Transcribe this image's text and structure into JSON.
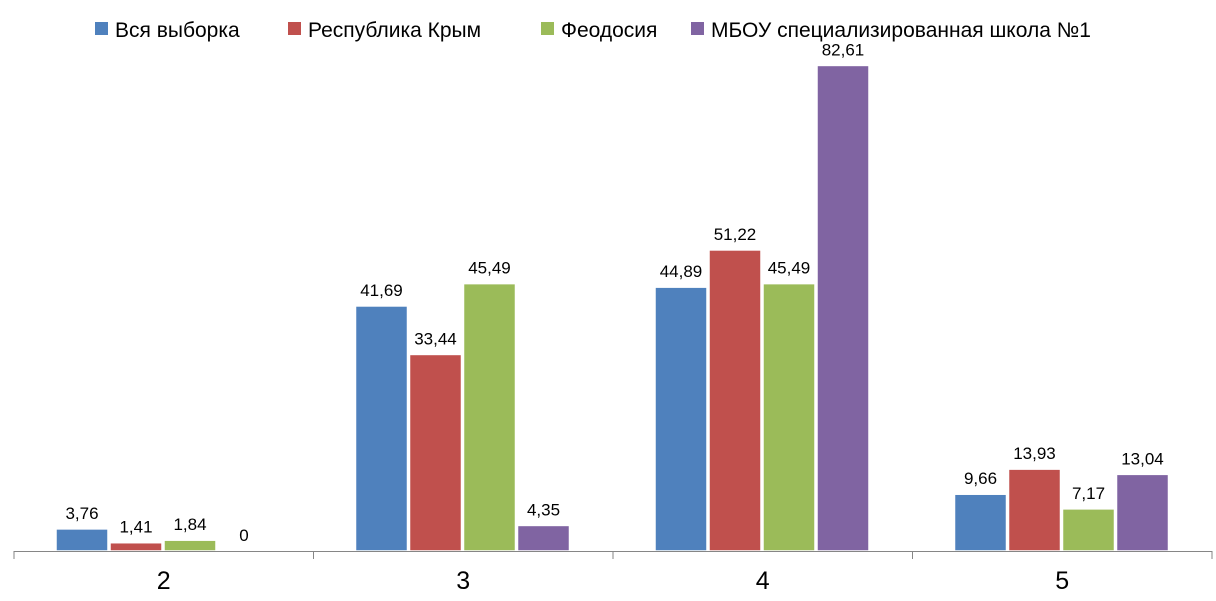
{
  "chart_data": {
    "type": "bar",
    "categories": [
      "2",
      "3",
      "4",
      "5"
    ],
    "series": [
      {
        "name": "Вся выборка",
        "color": "#4F81BD",
        "values": [
          3.76,
          41.69,
          44.89,
          9.66
        ],
        "labels": [
          "3,76",
          "41,69",
          "44,89",
          "9,66"
        ]
      },
      {
        "name": "Республика Крым",
        "color": "#C0504D",
        "values": [
          1.41,
          33.44,
          51.22,
          13.93
        ],
        "labels": [
          "1,41",
          "33,44",
          "51,22",
          "13,93"
        ]
      },
      {
        "name": "Феодосия",
        "color": "#9BBB59",
        "values": [
          1.84,
          45.49,
          45.49,
          7.17
        ],
        "labels": [
          "1,84",
          "45,49",
          "45,49",
          "7,17"
        ]
      },
      {
        "name": "МБОУ специализированная школа №1",
        "color": "#8064A2",
        "values": [
          0,
          4.35,
          82.61,
          13.04
        ],
        "labels": [
          "0",
          "4,35",
          "82,61",
          "13,04"
        ]
      }
    ],
    "ylim": [
      0,
      90
    ],
    "grid": false,
    "legend_position": "top",
    "title": "",
    "xlabel": "",
    "ylabel": ""
  }
}
